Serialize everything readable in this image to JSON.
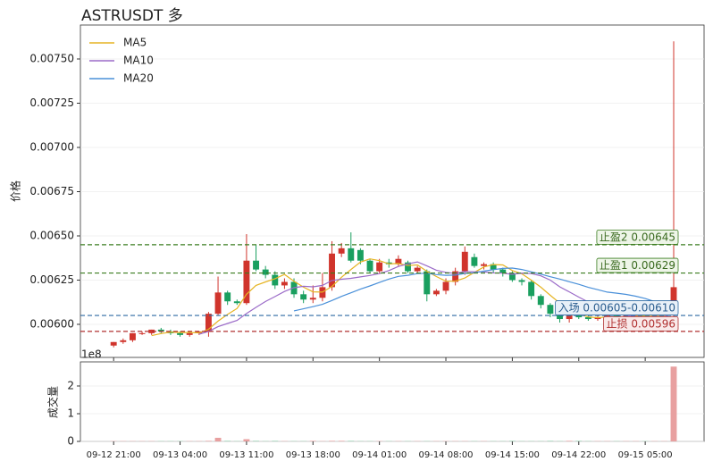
{
  "chart_data": [
    {
      "type": "candlestick",
      "title": "ASTRUSDT  多",
      "ylabel": "价格",
      "xlim": [
        -3.5,
        62.2
      ],
      "ylim": [
        0.005813,
        0.007692
      ],
      "yticks": [
        {
          "value": 0.006,
          "label": "0.00600"
        },
        {
          "value": 0.00625,
          "label": "0.00625"
        },
        {
          "value": 0.0065,
          "label": "0.00650"
        },
        {
          "value": 0.00675,
          "label": "0.00675"
        },
        {
          "value": 0.007,
          "label": "0.00700"
        },
        {
          "value": 0.00725,
          "label": "0.00725"
        },
        {
          "value": 0.0075,
          "label": "0.00750"
        }
      ],
      "grid": true,
      "up_color": "#d0342c",
      "down_color": "#1a9f5f",
      "candles": {
        "open": [
          0.00588,
          0.0059,
          0.00591,
          0.00595,
          0.00595,
          0.00597,
          0.00596,
          0.00595,
          0.00594,
          0.00595,
          0.00596,
          0.00606,
          0.00618,
          0.00613,
          0.00612,
          0.00636,
          0.00631,
          0.00628,
          0.00622,
          0.00624,
          0.00617,
          0.00614,
          0.00615,
          0.00621,
          0.0064,
          0.00643,
          0.00642,
          0.00636,
          0.0063,
          0.00635,
          0.00634,
          0.00635,
          0.0063,
          0.0063,
          0.00617,
          0.00619,
          0.00624,
          0.0063,
          0.00638,
          0.00633,
          0.00634,
          0.00631,
          0.00629,
          0.00625,
          0.00624,
          0.00616,
          0.00611,
          0.00606,
          0.00603,
          0.00605,
          0.00604,
          0.00603,
          0.00604,
          0.00605,
          0.00604,
          0.00605,
          0.00605,
          0.00604,
          0.00605,
          0.00605
        ],
        "high": [
          0.0059,
          0.00592,
          0.00595,
          0.00596,
          0.00597,
          0.00598,
          0.00597,
          0.00596,
          0.00596,
          0.00596,
          0.00607,
          0.00627,
          0.00619,
          0.00614,
          0.00651,
          0.00645,
          0.00633,
          0.0063,
          0.00626,
          0.00626,
          0.00619,
          0.00622,
          0.00629,
          0.00647,
          0.00646,
          0.00652,
          0.00643,
          0.00637,
          0.00637,
          0.00637,
          0.00639,
          0.00636,
          0.00633,
          0.00631,
          0.0062,
          0.00626,
          0.00632,
          0.00644,
          0.0064,
          0.00635,
          0.00635,
          0.00632,
          0.0063,
          0.00626,
          0.00625,
          0.00617,
          0.00612,
          0.00608,
          0.00606,
          0.00606,
          0.00605,
          0.00605,
          0.00606,
          0.00606,
          0.00605,
          0.00606,
          0.00606,
          0.00605,
          0.00606,
          0.0076
        ],
        "low": [
          0.00587,
          0.00589,
          0.0059,
          0.00594,
          0.00594,
          0.00595,
          0.00594,
          0.00593,
          0.00593,
          0.00594,
          0.00593,
          0.00605,
          0.00611,
          0.00611,
          0.00611,
          0.0063,
          0.00626,
          0.0062,
          0.0062,
          0.00615,
          0.00612,
          0.00612,
          0.00613,
          0.00619,
          0.00638,
          0.00635,
          0.00634,
          0.00629,
          0.00629,
          0.00632,
          0.00633,
          0.00629,
          0.00629,
          0.00613,
          0.00616,
          0.00617,
          0.00622,
          0.00628,
          0.00632,
          0.00631,
          0.00629,
          0.00627,
          0.00624,
          0.00622,
          0.00614,
          0.00609,
          0.00604,
          0.00601,
          0.00601,
          0.00603,
          0.00602,
          0.00602,
          0.00603,
          0.00604,
          0.00603,
          0.00604,
          0.00604,
          0.00603,
          0.00604,
          0.00604
        ],
        "close": [
          0.0059,
          0.00591,
          0.00595,
          0.00595,
          0.00597,
          0.00596,
          0.00595,
          0.00594,
          0.00595,
          0.00596,
          0.00606,
          0.00618,
          0.00613,
          0.00612,
          0.00636,
          0.00631,
          0.00628,
          0.00622,
          0.00624,
          0.00617,
          0.00614,
          0.00615,
          0.00621,
          0.0064,
          0.00643,
          0.00636,
          0.00636,
          0.0063,
          0.00635,
          0.00634,
          0.00637,
          0.0063,
          0.00632,
          0.00617,
          0.00619,
          0.00624,
          0.0063,
          0.00641,
          0.00633,
          0.00634,
          0.00631,
          0.00629,
          0.00625,
          0.00624,
          0.00616,
          0.00611,
          0.00606,
          0.00603,
          0.00605,
          0.00604,
          0.00603,
          0.00604,
          0.00605,
          0.00604,
          0.00605,
          0.00605,
          0.00604,
          0.00605,
          0.00605,
          0.00621
        ]
      },
      "legend": "upper left",
      "series": [
        {
          "name": "MA5",
          "color": "#e6b422",
          "values": [
            null,
            null,
            null,
            null,
            0.005936,
            0.005948,
            0.005956,
            0.005954,
            0.005954,
            0.005952,
            0.005972,
            0.006018,
            0.006056,
            0.00609,
            0.00617,
            0.00622,
            0.00624,
            0.006258,
            0.006282,
            0.006244,
            0.00621,
            0.006184,
            0.006182,
            0.006214,
            0.006266,
            0.00631,
            0.006352,
            0.00637,
            0.00636,
            0.006342,
            0.006344,
            0.006332,
            0.006336,
            0.0063,
            0.00627,
            0.006244,
            0.006244,
            0.006262,
            0.006294,
            0.006324,
            0.006338,
            0.006336,
            0.006304,
            0.006286,
            0.00625,
            0.00621,
            0.006164,
            0.00612,
            0.006082,
            0.006058,
            0.006042,
            0.006038,
            0.006042,
            0.00604,
            0.006042,
            0.006046,
            0.006046,
            0.006046,
            0.006048,
            0.00608
          ]
        },
        {
          "name": "MA10",
          "color": "#9b6bc8",
          "values": [
            null,
            null,
            null,
            null,
            null,
            null,
            null,
            null,
            null,
            0.005944,
            0.00596,
            0.005987,
            0.006005,
            0.006022,
            0.006061,
            0.006096,
            0.006129,
            0.006157,
            0.006186,
            0.006207,
            0.006215,
            0.006212,
            0.00622,
            0.006248,
            0.006255,
            0.00626,
            0.006268,
            0.006276,
            0.006287,
            0.006304,
            0.006327,
            0.006342,
            0.006353,
            0.00633,
            0.006306,
            0.006294,
            0.006288,
            0.006299,
            0.006297,
            0.006297,
            0.006291,
            0.00629,
            0.006283,
            0.00629,
            0.006287,
            0.006274,
            0.00625,
            0.006212,
            0.006184,
            0.006154,
            0.006126,
            0.006101,
            0.006081,
            0.006061,
            0.00605,
            0.006044,
            0.006042,
            0.006044,
            0.006044,
            0.006061
          ]
        },
        {
          "name": "MA20",
          "color": "#4a90d9",
          "values": [
            null,
            null,
            null,
            null,
            null,
            null,
            null,
            null,
            null,
            null,
            null,
            null,
            null,
            null,
            null,
            null,
            null,
            null,
            null,
            0.006076,
            0.006088,
            0.0061,
            0.006113,
            0.006135,
            0.006158,
            0.006178,
            0.006199,
            0.006217,
            0.006237,
            0.006256,
            0.006271,
            0.006277,
            0.006287,
            0.006289,
            0.006281,
            0.006277,
            0.006278,
            0.006288,
            0.006292,
            0.006301,
            0.006309,
            0.006316,
            0.006318,
            0.00631,
            0.006297,
            0.006284,
            0.006269,
            0.006256,
            0.006241,
            0.006226,
            0.006209,
            0.006196,
            0.006182,
            0.006176,
            0.006169,
            0.006159,
            0.006146,
            0.006128,
            0.006114,
            0.006108
          ]
        }
      ],
      "levels": [
        {
          "label": "止盈2 0.00645",
          "value": 0.00645,
          "color": "#3a7d1f",
          "text_color": "#3a6a1f",
          "box_color": "#eef5e8"
        },
        {
          "label": "止盈1 0.00629",
          "value": 0.00629,
          "color": "#3a7d1f",
          "text_color": "#3a6a1f",
          "box_color": "#eef5e8"
        },
        {
          "label": "入场 0.00605-0.00610",
          "value": 0.00605,
          "color": "#2d6aa3",
          "text_color": "#2a5d8f",
          "box_color": "#e8f0f8"
        },
        {
          "label": "止损 0.00596",
          "value": 0.00596,
          "color": "#b03030",
          "text_color": "#b03030",
          "box_color": "#f9eaea"
        }
      ]
    },
    {
      "type": "bar",
      "ylabel": "成交量",
      "offset_label": "1e8",
      "xlim": [
        -3.5,
        62.2
      ],
      "ylim": [
        0,
        2.87
      ],
      "yticks": [
        0,
        1,
        2
      ],
      "grid": true,
      "xticks": [
        {
          "value": 0,
          "label": "09-12 21:00"
        },
        {
          "value": 7,
          "label": "09-13 04:00"
        },
        {
          "value": 14,
          "label": "09-13 11:00"
        },
        {
          "value": 21,
          "label": "09-13 18:00"
        },
        {
          "value": 28,
          "label": "09-14 01:00"
        },
        {
          "value": 35,
          "label": "09-14 08:00"
        },
        {
          "value": 42,
          "label": "09-14 15:00"
        },
        {
          "value": 49,
          "label": "09-14 22:00"
        },
        {
          "value": 56,
          "label": "09-15 05:00"
        }
      ],
      "up_color": "#e8a0a0",
      "down_color": "#8fcfac",
      "values": [
        0.01,
        0.01,
        0.01,
        0.01,
        0.01,
        0.01,
        0.01,
        0.01,
        0.01,
        0.01,
        0.02,
        0.13,
        0.02,
        0.01,
        0.08,
        0.02,
        0.01,
        0.02,
        0.01,
        0.01,
        0.01,
        0.02,
        0.01,
        0.02,
        0.02,
        0.02,
        0.01,
        0.01,
        0.01,
        0.01,
        0.01,
        0.01,
        0.01,
        0.01,
        0.01,
        0.01,
        0.01,
        0.01,
        0.01,
        0.01,
        0.01,
        0.01,
        0.02,
        0.01,
        0.01,
        0.01,
        0.02,
        0.01,
        0.02,
        0.02,
        0.01,
        0.01,
        0.01,
        0.01,
        0.01,
        0.01,
        0.01,
        0.01,
        0.01,
        2.7
      ]
    }
  ]
}
